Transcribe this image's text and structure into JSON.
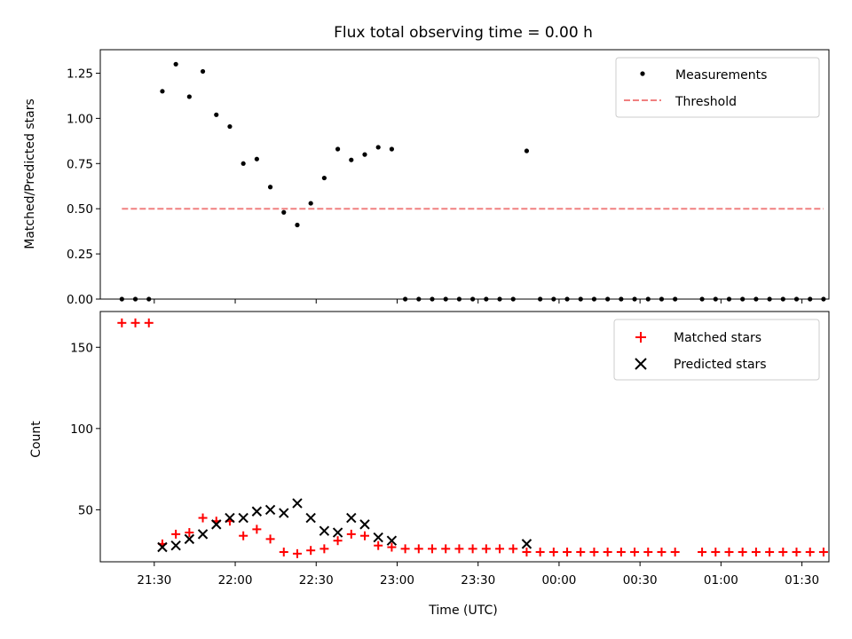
{
  "chart_data": {
    "title": "Flux total observing time = 0.00 h",
    "xlabel": "Time (UTC)",
    "x_unit": "minutes after 00:00 UTC of the first night (values >= 1440 fall after midnight)",
    "x_range": [
      1270,
      1540
    ],
    "x_ticks": [
      1290,
      1320,
      1350,
      1380,
      1410,
      1440,
      1470,
      1500,
      1530
    ],
    "x_tick_labels": [
      "21:30",
      "22:00",
      "22:30",
      "23:00",
      "23:30",
      "00:00",
      "00:30",
      "01:00",
      "01:30"
    ],
    "x_times": [
      1278,
      1283,
      1288,
      1293,
      1298,
      1303,
      1308,
      1313,
      1318,
      1323,
      1328,
      1333,
      1338,
      1343,
      1348,
      1353,
      1358,
      1363,
      1368,
      1373,
      1378,
      1383,
      1388,
      1393,
      1398,
      1403,
      1408,
      1413,
      1418,
      1423,
      1428,
      1433,
      1438,
      1443,
      1448,
      1453,
      1458,
      1463,
      1468,
      1473,
      1478,
      1483,
      1493,
      1498,
      1503,
      1508,
      1513,
      1518,
      1523,
      1528,
      1533,
      1538
    ],
    "panels": [
      {
        "type": "scatter",
        "ylabel": "Matched/Predicted stars",
        "ylim": [
          0,
          1.38
        ],
        "y_ticks": [
          0.0,
          0.25,
          0.5,
          0.75,
          1.0,
          1.25
        ],
        "y_tick_labels": [
          "0.00",
          "0.25",
          "0.50",
          "0.75",
          "1.00",
          "1.25"
        ],
        "legend_position": "upper right",
        "series": [
          {
            "name": "Measurements",
            "kind": "scatter",
            "marker": "dot",
            "color": "#000000",
            "values": [
              0,
              0,
              0,
              1.15,
              1.3,
              1.12,
              1.26,
              1.02,
              0.955,
              0.75,
              0.775,
              0.62,
              0.48,
              0.41,
              0.53,
              0.67,
              0.83,
              0.77,
              0.8,
              0.84,
              0.83,
              0,
              0,
              0,
              0,
              0,
              0,
              0,
              0,
              0,
              0.82,
              0,
              0,
              0,
              0,
              0,
              0,
              0,
              0,
              0,
              0,
              0,
              0,
              0,
              0,
              0,
              0,
              0,
              0,
              0,
              0,
              0
            ]
          }
        ],
        "threshold": {
          "name": "Threshold",
          "value": 0.5,
          "x_start": 1278,
          "x_end": 1538,
          "color": "#f08080",
          "style": "dashed"
        }
      },
      {
        "type": "scatter",
        "ylabel": "Count",
        "ylim": [
          18,
          172
        ],
        "y_ticks": [
          50,
          100,
          150
        ],
        "y_tick_labels": [
          "50",
          "100",
          "150"
        ],
        "legend_position": "upper right",
        "series": [
          {
            "name": "Matched stars",
            "kind": "scatter",
            "marker": "plus",
            "color": "#ff0000",
            "values": [
              165,
              165,
              165,
              29,
              35,
              36,
              45,
              43,
              43,
              34,
              38,
              32,
              24,
              23,
              25,
              26,
              31,
              35,
              34,
              28,
              27,
              26,
              26,
              26,
              26,
              26,
              26,
              26,
              26,
              26,
              24,
              24,
              24,
              24,
              24,
              24,
              24,
              24,
              24,
              24,
              24,
              24,
              24,
              24,
              24,
              24,
              24,
              24,
              24,
              24,
              24,
              24
            ]
          },
          {
            "name": "Predicted stars",
            "kind": "scatter",
            "marker": "x",
            "color": "#000000",
            "values": [
              null,
              null,
              null,
              27,
              28,
              32,
              35,
              41,
              45,
              45,
              49,
              50,
              48,
              54,
              45,
              37,
              36,
              45,
              41,
              33,
              31,
              null,
              null,
              null,
              null,
              null,
              null,
              null,
              null,
              null,
              29,
              null,
              null,
              null,
              null,
              null,
              null,
              null,
              null,
              null,
              null,
              null,
              null,
              null,
              null,
              null,
              null,
              null,
              null,
              null,
              null,
              null
            ]
          }
        ]
      }
    ]
  }
}
